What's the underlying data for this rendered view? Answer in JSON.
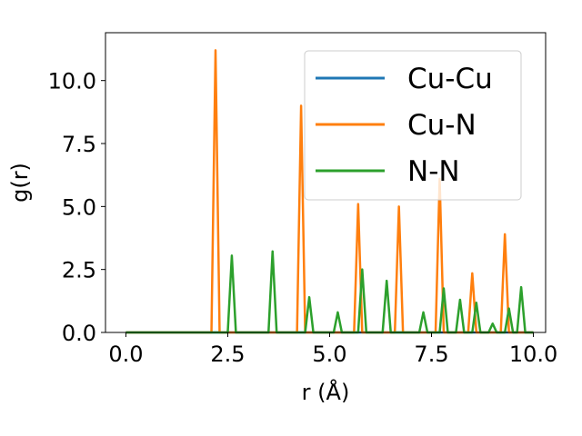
{
  "chart_data": {
    "type": "line",
    "title": "",
    "xlabel": "r (Å)",
    "ylabel": "g(r)",
    "xlim": [
      -0.5,
      10.3
    ],
    "ylim": [
      0,
      11.9
    ],
    "x_ticks": [
      "0.0",
      "2.5",
      "5.0",
      "7.5",
      "10.0"
    ],
    "y_ticks": [
      "0.0",
      "2.5",
      "5.0",
      "7.5",
      "10.0"
    ],
    "grid": false,
    "legend_position": "top-right",
    "series": [
      {
        "name": "Cu-Cu",
        "color": "#1f77b4",
        "x": [
          0.0,
          10.0
        ],
        "y": [
          0.0,
          0.0
        ]
      },
      {
        "name": "Cu-N",
        "color": "#ff7f0e",
        "x": [
          0.0,
          2.1,
          2.2,
          2.3,
          4.2,
          4.3,
          4.4,
          5.6,
          5.7,
          5.8,
          6.6,
          6.7,
          6.8,
          7.6,
          7.7,
          7.8,
          8.4,
          8.5,
          8.6,
          9.2,
          9.3,
          9.4,
          10.0
        ],
        "y": [
          0.0,
          0.0,
          11.2,
          0.0,
          0.0,
          9.0,
          0.0,
          0.0,
          5.1,
          0.0,
          0.0,
          5.0,
          0.0,
          0.0,
          6.1,
          0.0,
          0.0,
          2.35,
          0.0,
          0.0,
          3.9,
          0.0,
          0.0
        ]
      },
      {
        "name": "N-N",
        "color": "#2ca02c",
        "x": [
          0.0,
          2.5,
          2.6,
          2.7,
          3.5,
          3.6,
          3.7,
          4.4,
          4.5,
          4.6,
          5.1,
          5.2,
          5.3,
          5.7,
          5.8,
          5.9,
          6.3,
          6.4,
          6.5,
          7.2,
          7.3,
          7.4,
          7.7,
          7.8,
          7.9,
          8.1,
          8.2,
          8.3,
          8.5,
          8.6,
          8.7,
          8.9,
          9.0,
          9.1,
          9.3,
          9.4,
          9.5,
          9.6,
          9.7,
          9.8,
          10.0
        ],
        "y": [
          0.0,
          0.0,
          3.05,
          0.0,
          0.0,
          3.22,
          0.0,
          0.0,
          1.4,
          0.0,
          0.0,
          0.8,
          0.0,
          0.0,
          2.5,
          0.0,
          0.0,
          2.05,
          0.0,
          0.0,
          0.8,
          0.0,
          0.0,
          1.75,
          0.0,
          0.0,
          1.3,
          0.0,
          0.0,
          1.18,
          0.0,
          0.0,
          0.35,
          0.0,
          0.0,
          0.95,
          0.0,
          0.0,
          1.8,
          0.0,
          0.0
        ]
      }
    ]
  }
}
